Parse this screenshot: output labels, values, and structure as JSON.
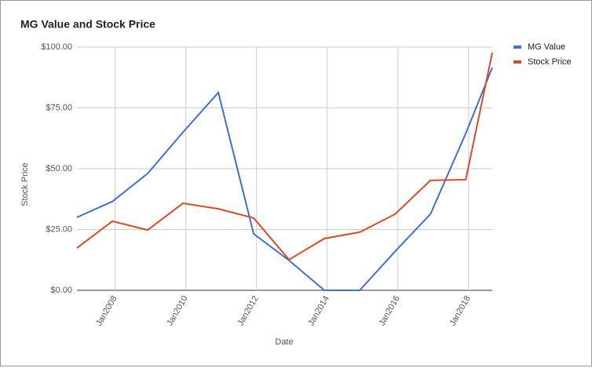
{
  "chart_data": {
    "type": "line",
    "title": "MG Value and Stock Price",
    "x_label": "Date",
    "y_label": "Stock Price",
    "x": [
      2006.92,
      2007.92,
      2008.92,
      2009.92,
      2010.92,
      2011.92,
      2012.92,
      2013.92,
      2014.92,
      2015.92,
      2016.92,
      2017.92,
      2018.67
    ],
    "series": [
      {
        "name": "MG Value",
        "color": "#3d6fd6",
        "values": [
          30,
          36.5,
          48,
          65,
          81.3,
          23.2,
          12.3,
          0,
          0,
          16,
          31.3,
          64.5,
          91.6
        ]
      },
      {
        "name": "Stock Price",
        "color": "#dc4a24",
        "values": [
          17.4,
          28.4,
          24.8,
          35.8,
          33.5,
          29.7,
          12.6,
          21.3,
          23.9,
          31.3,
          45.2,
          45.5,
          97.7
        ]
      }
    ],
    "xlim": [
      2006.92,
      2018.67
    ],
    "xticks": [
      {
        "value": 2008,
        "label": "Jan2008"
      },
      {
        "value": 2010,
        "label": "Jan2010"
      },
      {
        "value": 2012,
        "label": "Jan2012"
      },
      {
        "value": 2014,
        "label": "Jan2014"
      },
      {
        "value": 2016,
        "label": "Jan2016"
      },
      {
        "value": 2018,
        "label": "Jan2018"
      }
    ],
    "ylim": [
      0,
      100
    ],
    "yticks": [
      {
        "value": 0,
        "label": "$0.00"
      },
      {
        "value": 25,
        "label": "$25.00"
      },
      {
        "value": 50,
        "label": "$50.00"
      },
      {
        "value": 75,
        "label": "$75.00"
      },
      {
        "value": 100,
        "label": "$100.00"
      }
    ],
    "grid": true,
    "legend": "right"
  }
}
